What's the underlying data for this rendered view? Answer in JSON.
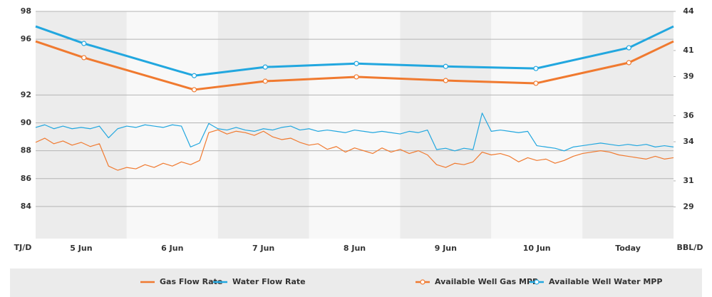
{
  "chart_data": {
    "type": "line",
    "y_axis_label": "TJ/D",
    "y2_axis_label": "BBL/D",
    "xlim": [
      0,
      7
    ],
    "xticks": [
      {
        "value": 0.5,
        "label": "5 Jun"
      },
      {
        "value": 1.5,
        "label": "6 Jun"
      },
      {
        "value": 2.5,
        "label": "7 Jun"
      },
      {
        "value": 3.5,
        "label": "8 Jun"
      },
      {
        "value": 4.5,
        "label": "9 Jun"
      },
      {
        "value": 5.5,
        "label": "10 Jun"
      },
      {
        "value": 6.5,
        "label": "Today"
      }
    ],
    "ylim": [
      82,
      98
    ],
    "yticks": [
      98,
      96,
      92,
      90,
      88,
      86,
      84
    ],
    "y2lim": [
      26.9,
      44
    ],
    "y2ticks": [
      44,
      41,
      39,
      36,
      34,
      31,
      29
    ],
    "grid": true,
    "series": [
      {
        "name": "Gas Flow Rate",
        "color": "#f07a30",
        "axis": "y",
        "marker": false,
        "x": [
          0,
          0.1,
          0.2,
          0.3,
          0.4,
          0.5,
          0.6,
          0.7,
          0.8,
          0.9,
          1,
          1.1,
          1.2,
          1.3,
          1.4,
          1.5,
          1.6,
          1.7,
          1.8,
          1.9,
          2,
          2.1,
          2.2,
          2.3,
          2.4,
          2.5,
          2.6,
          2.7,
          2.8,
          2.9,
          3,
          3.1,
          3.2,
          3.3,
          3.4,
          3.5,
          3.6,
          3.7,
          3.8,
          3.9,
          4,
          4.1,
          4.2,
          4.3,
          4.4,
          4.5,
          4.6,
          4.7,
          4.8,
          4.9,
          5,
          5.1,
          5.2,
          5.3,
          5.4,
          5.5,
          5.6,
          5.7,
          5.8,
          5.9,
          6,
          6.1,
          6.2,
          6.3,
          6.4,
          6.5,
          6.6,
          6.7,
          6.8,
          6.9,
          7
        ],
        "values": [
          88.6,
          88.9,
          88.5,
          88.7,
          88.4,
          88.6,
          88.3,
          88.5,
          86.9,
          86.6,
          86.8,
          86.7,
          87.0,
          86.8,
          87.1,
          86.9,
          87.2,
          87.0,
          87.3,
          89.3,
          89.5,
          89.2,
          89.4,
          89.3,
          89.1,
          89.4,
          89.0,
          88.8,
          88.9,
          88.6,
          88.4,
          88.5,
          88.1,
          88.3,
          87.9,
          88.2,
          88.0,
          87.8,
          88.2,
          87.9,
          88.1,
          87.8,
          88.0,
          87.7,
          87.0,
          86.8,
          87.1,
          87.0,
          87.2,
          87.9,
          87.7,
          87.8,
          87.6,
          87.2,
          87.5,
          87.3,
          87.4,
          87.1,
          87.3,
          87.6,
          87.8,
          87.9,
          88.0,
          87.9,
          87.7,
          87.6,
          87.5,
          87.4,
          87.6,
          87.4,
          87.5
        ]
      },
      {
        "name": "Water Flow Rate",
        "color": "#22a7df",
        "axis": "y2",
        "marker": false,
        "x": [
          0,
          0.1,
          0.2,
          0.3,
          0.4,
          0.5,
          0.6,
          0.7,
          0.8,
          0.9,
          1,
          1.1,
          1.2,
          1.3,
          1.4,
          1.5,
          1.6,
          1.7,
          1.8,
          1.9,
          2,
          2.1,
          2.2,
          2.3,
          2.4,
          2.5,
          2.6,
          2.7,
          2.8,
          2.9,
          3,
          3.1,
          3.2,
          3.3,
          3.4,
          3.5,
          3.6,
          3.7,
          3.8,
          3.9,
          4,
          4.1,
          4.2,
          4.3,
          4.4,
          4.5,
          4.6,
          4.7,
          4.8,
          4.9,
          5,
          5.1,
          5.2,
          5.3,
          5.4,
          5.5,
          5.6,
          5.7,
          5.8,
          5.9,
          6,
          6.1,
          6.2,
          6.3,
          6.4,
          6.5,
          6.6,
          6.7,
          6.8,
          6.9,
          7
        ],
        "values": [
          35.1,
          35.3,
          35.0,
          35.2,
          35.0,
          35.1,
          35.0,
          35.2,
          34.3,
          35.0,
          35.2,
          35.1,
          35.3,
          35.2,
          35.1,
          35.3,
          35.2,
          33.6,
          33.9,
          35.4,
          35.0,
          34.9,
          35.1,
          34.9,
          34.8,
          35.0,
          34.9,
          35.1,
          35.2,
          34.9,
          35.0,
          34.8,
          34.9,
          34.8,
          34.7,
          34.9,
          34.8,
          34.7,
          34.8,
          34.7,
          34.6,
          34.8,
          34.7,
          34.9,
          33.4,
          33.5,
          33.3,
          33.5,
          33.4,
          36.2,
          34.8,
          34.9,
          34.8,
          34.7,
          34.8,
          33.7,
          33.6,
          33.5,
          33.3,
          33.6,
          33.7,
          33.8,
          33.9,
          33.8,
          33.7,
          33.8,
          33.7,
          33.8,
          33.6,
          33.7,
          33.6
        ]
      },
      {
        "name": "Available Well Gas MPP",
        "color": "#f07a30",
        "axis": "y",
        "marker": true,
        "x": [
          0,
          0.53,
          1.74,
          2.52,
          3.52,
          4.5,
          5.49,
          6.51,
          7
        ],
        "values": [
          95.85,
          94.68,
          92.38,
          92.99,
          93.3,
          93.04,
          92.84,
          94.32,
          95.85
        ]
      },
      {
        "name": "Available Well Water MPP",
        "color": "#22a7df",
        "axis": "y2",
        "marker": true,
        "x": [
          0,
          0.53,
          1.74,
          2.52,
          3.52,
          4.5,
          5.49,
          6.51,
          7
        ],
        "values": [
          42.85,
          41.54,
          39.07,
          39.73,
          40.0,
          39.78,
          39.62,
          41.21,
          42.85
        ]
      }
    ]
  }
}
